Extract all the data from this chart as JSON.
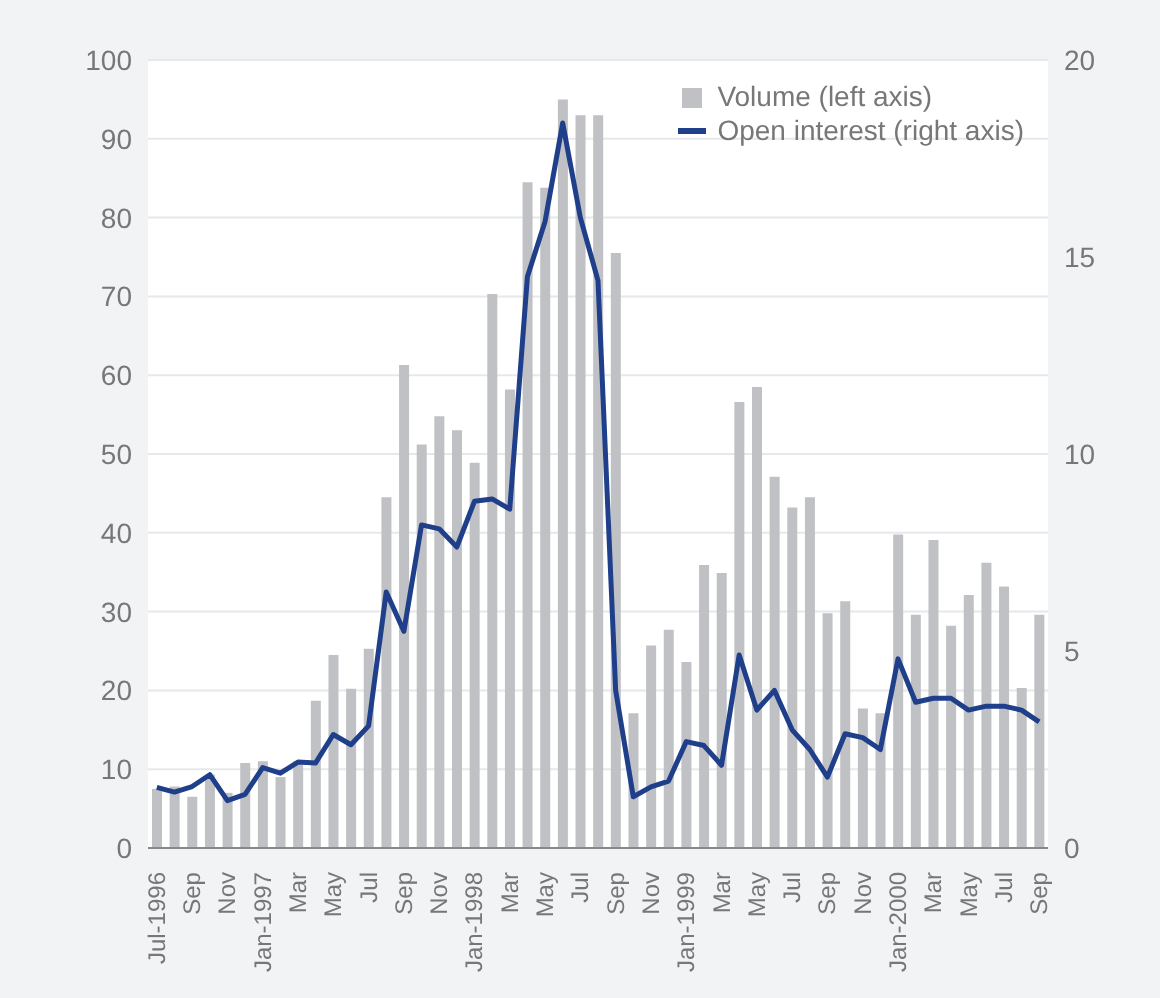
{
  "chart_data": {
    "type": "bar",
    "categories": [
      "Jul-1996",
      null,
      "Sep",
      null,
      "Nov",
      null,
      "Jan-1997",
      null,
      "Mar",
      null,
      "May",
      null,
      "Jul",
      null,
      "Sep",
      null,
      "Nov",
      null,
      "Jan-1998",
      null,
      "Mar",
      null,
      "May",
      null,
      "Jul",
      null,
      "Sep",
      null,
      "Nov",
      null,
      "Jan-1999",
      null,
      "Mar",
      null,
      "May",
      null,
      "Jul",
      null,
      "Sep",
      null,
      "Nov",
      null,
      "Jan-2000",
      null,
      "Mar",
      null,
      "May",
      null,
      "Jul",
      null,
      "Sep"
    ],
    "series": [
      {
        "name": "Volume (left axis)",
        "color": "#bfc1c4",
        "values": [
          7.5,
          7.8,
          6.5,
          9.3,
          7.0,
          10.8,
          11,
          9,
          11,
          18.7,
          24.5,
          20.2,
          25.3,
          44.5,
          61.3,
          51.2,
          54.8,
          53,
          48.9,
          70.3,
          58.2,
          84.5,
          83.8,
          95,
          93,
          93,
          75.5,
          17.1,
          25.7,
          27.7,
          23.6,
          35.9,
          34.9,
          56.6,
          58.5,
          47.1,
          43.2,
          44.5,
          29.8,
          31.3,
          17.7,
          17.1,
          39.8,
          29.6,
          39.1,
          28.2,
          32.1,
          36.2,
          33.2,
          20.3,
          29.6
        ]
      },
      {
        "name": "Open interest (right axis)",
        "type": "line",
        "axis": "y2",
        "color": "#1f3f8a",
        "values": [
          1.54,
          1.42,
          1.56,
          1.86,
          1.2,
          1.36,
          2.04,
          1.9,
          2.18,
          2.16,
          2.88,
          2.62,
          3.1,
          6.5,
          5.5,
          8.2,
          8.1,
          7.64,
          8.8,
          8.86,
          8.6,
          14.5,
          15.9,
          18.4,
          16.0,
          14.4,
          4.0,
          1.3,
          1.55,
          1.7,
          2.7,
          2.6,
          2.1,
          4.9,
          3.5,
          4.0,
          3.0,
          2.5,
          1.8,
          2.9,
          2.8,
          2.5,
          4.8,
          3.7,
          3.8,
          3.8,
          3.5,
          3.6,
          3.6,
          3.5,
          3.2
        ]
      }
    ],
    "ylim": [
      0,
      100
    ],
    "yticks": [
      0,
      10,
      20,
      30,
      40,
      50,
      60,
      70,
      80,
      90,
      100
    ],
    "y2lim": [
      0,
      20
    ],
    "y2ticks": [
      0,
      5,
      10,
      15,
      20
    ],
    "grid": "y",
    "legend": "top right",
    "marker": "none",
    "line_style": "solid"
  }
}
